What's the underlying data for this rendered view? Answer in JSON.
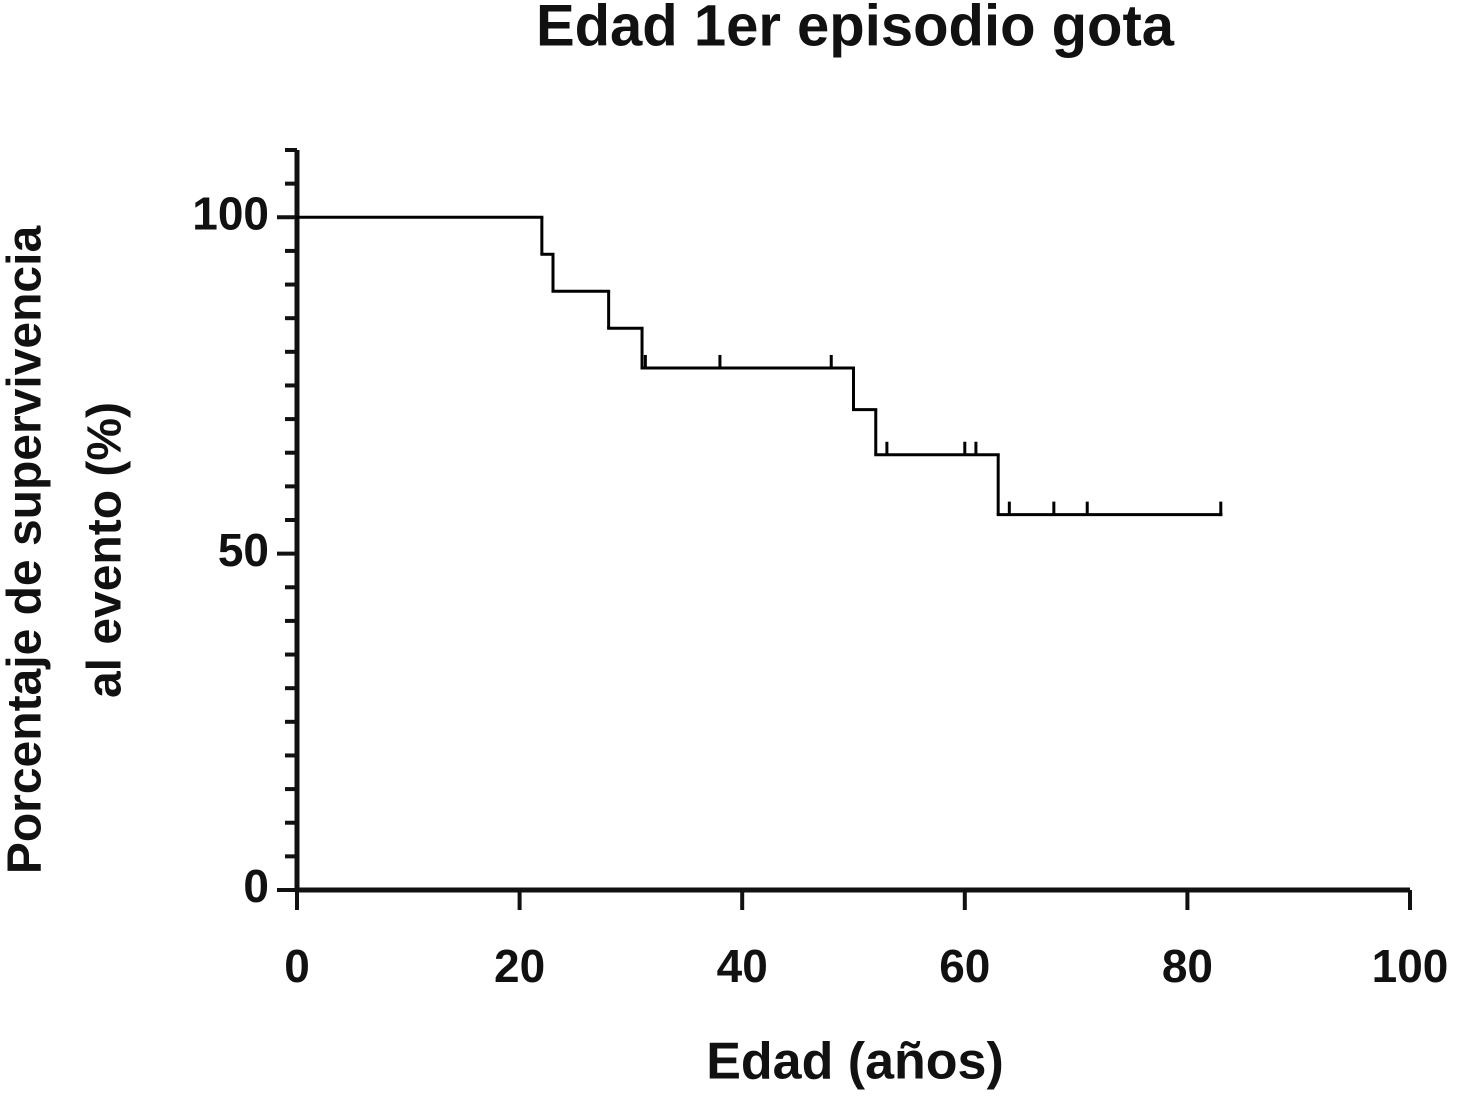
{
  "chart_data": {
    "type": "step",
    "title": "Edad 1er episodio gota",
    "xlabel": "Edad (años)",
    "ylabel": [
      "Porcentaje de supervivencia",
      "al evento (%)"
    ],
    "x": [
      0,
      22,
      23,
      28,
      31,
      50,
      52,
      63,
      83
    ],
    "values": [
      100,
      94.5,
      89,
      83.5,
      77.6,
      71.4,
      64.7,
      55.8,
      55.8
    ],
    "color": "#000000",
    "censored": {
      "x": [
        31.3,
        38,
        48,
        53,
        60,
        61,
        64,
        68,
        71,
        83
      ],
      "values": [
        77.6,
        77.6,
        77.6,
        64.7,
        64.7,
        64.7,
        55.8,
        55.8,
        55.8,
        55.8
      ]
    },
    "xlim": [
      0,
      100
    ],
    "xticks": [
      0,
      20,
      40,
      60,
      80,
      100
    ],
    "ylim": [
      0,
      110
    ],
    "yticks": [
      0,
      50,
      100
    ],
    "yminorticks": [
      5,
      10,
      15,
      20,
      25,
      30,
      35,
      40,
      45,
      55,
      60,
      65,
      70,
      75,
      80,
      85,
      90,
      95,
      105,
      110
    ]
  }
}
